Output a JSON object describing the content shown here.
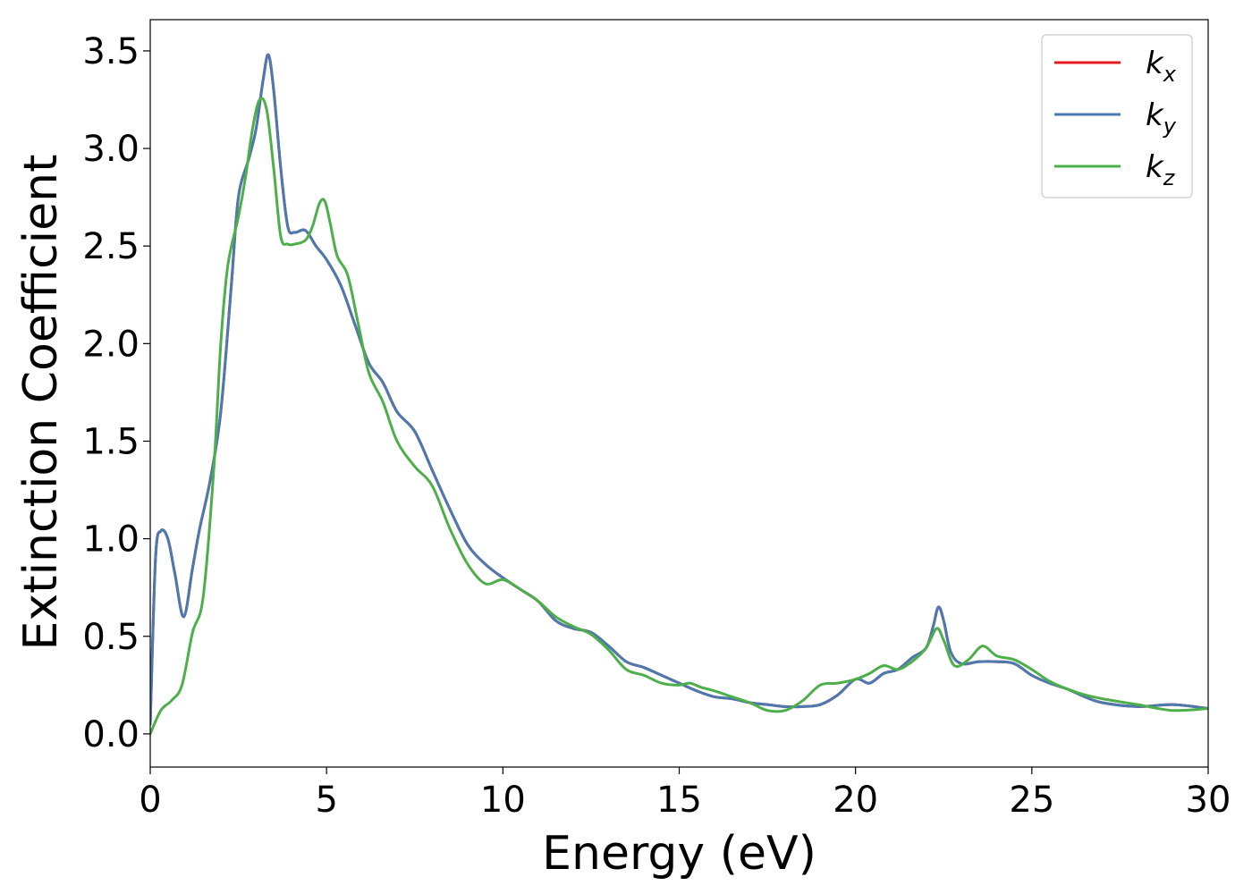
{
  "chart_data": {
    "type": "line",
    "xlabel": "Energy (eV)",
    "ylabel": "Extinction Coefficient",
    "xlim": [
      0,
      30
    ],
    "ylim": [
      -0.17,
      3.66
    ],
    "xticks": [
      0,
      5,
      10,
      15,
      20,
      25,
      30
    ],
    "xtick_labels": [
      "0",
      "5",
      "10",
      "15",
      "20",
      "25",
      "30"
    ],
    "yticks": [
      0.0,
      0.5,
      1.0,
      1.5,
      2.0,
      2.5,
      3.0,
      3.5
    ],
    "ytick_labels": [
      "0.0",
      "0.5",
      "1.0",
      "1.5",
      "2.0",
      "2.5",
      "3.0",
      "3.5"
    ],
    "grid": false,
    "legend_position": "top-right",
    "series": [
      {
        "name": "k",
        "subscript": "x",
        "color": "#e41a1c",
        "x": [
          0,
          0.15,
          0.3,
          0.5,
          0.7,
          0.95,
          1.2,
          1.4,
          1.7,
          2.0,
          2.3,
          2.5,
          2.8,
          3.0,
          3.2,
          3.35,
          3.5,
          3.7,
          3.9,
          4.1,
          4.4,
          4.7,
          5.0,
          5.4,
          5.8,
          6.2,
          6.6,
          7.0,
          7.5,
          8.0,
          8.5,
          9.0,
          9.5,
          10.0,
          10.5,
          11.0,
          11.5,
          12.0,
          12.5,
          13.0,
          13.5,
          14.0,
          14.5,
          15.0,
          15.5,
          16.0,
          16.5,
          17.0,
          17.5,
          18.0,
          18.5,
          19.0,
          19.5,
          20.0,
          20.4,
          20.8,
          21.2,
          21.6,
          22.0,
          22.2,
          22.35,
          22.5,
          22.7,
          23.0,
          23.5,
          24.0,
          24.5,
          25.0,
          25.5,
          26.0,
          26.5,
          27.0,
          28.0,
          29.0,
          30.0
        ],
        "values": [
          0.05,
          0.9,
          1.04,
          1.0,
          0.82,
          0.6,
          0.85,
          1.05,
          1.3,
          1.65,
          2.3,
          2.75,
          2.95,
          3.1,
          3.35,
          3.48,
          3.3,
          2.9,
          2.6,
          2.57,
          2.58,
          2.5,
          2.43,
          2.3,
          2.1,
          1.9,
          1.8,
          1.65,
          1.55,
          1.35,
          1.15,
          0.97,
          0.87,
          0.8,
          0.74,
          0.68,
          0.58,
          0.54,
          0.52,
          0.45,
          0.37,
          0.34,
          0.3,
          0.26,
          0.22,
          0.19,
          0.18,
          0.16,
          0.15,
          0.14,
          0.14,
          0.15,
          0.2,
          0.28,
          0.26,
          0.31,
          0.33,
          0.39,
          0.44,
          0.55,
          0.65,
          0.58,
          0.42,
          0.36,
          0.37,
          0.37,
          0.36,
          0.3,
          0.26,
          0.23,
          0.19,
          0.16,
          0.14,
          0.15,
          0.13
        ]
      },
      {
        "name": "k",
        "subscript": "y",
        "color": "#4a7ab0",
        "x": [
          0,
          0.15,
          0.3,
          0.5,
          0.7,
          0.95,
          1.2,
          1.4,
          1.7,
          2.0,
          2.3,
          2.5,
          2.8,
          3.0,
          3.2,
          3.35,
          3.5,
          3.7,
          3.9,
          4.1,
          4.4,
          4.7,
          5.0,
          5.4,
          5.8,
          6.2,
          6.6,
          7.0,
          7.5,
          8.0,
          8.5,
          9.0,
          9.5,
          10.0,
          10.5,
          11.0,
          11.5,
          12.0,
          12.5,
          13.0,
          13.5,
          14.0,
          14.5,
          15.0,
          15.5,
          16.0,
          16.5,
          17.0,
          17.5,
          18.0,
          18.5,
          19.0,
          19.5,
          20.0,
          20.4,
          20.8,
          21.2,
          21.6,
          22.0,
          22.2,
          22.35,
          22.5,
          22.7,
          23.0,
          23.5,
          24.0,
          24.5,
          25.0,
          25.5,
          26.0,
          26.5,
          27.0,
          28.0,
          29.0,
          30.0
        ],
        "values": [
          0.05,
          0.9,
          1.04,
          1.0,
          0.82,
          0.6,
          0.85,
          1.05,
          1.3,
          1.65,
          2.3,
          2.75,
          2.95,
          3.1,
          3.35,
          3.48,
          3.3,
          2.9,
          2.6,
          2.57,
          2.58,
          2.5,
          2.43,
          2.3,
          2.1,
          1.9,
          1.8,
          1.65,
          1.55,
          1.35,
          1.15,
          0.97,
          0.87,
          0.8,
          0.74,
          0.68,
          0.58,
          0.54,
          0.52,
          0.45,
          0.37,
          0.34,
          0.3,
          0.26,
          0.22,
          0.19,
          0.18,
          0.16,
          0.15,
          0.14,
          0.14,
          0.15,
          0.2,
          0.28,
          0.26,
          0.31,
          0.33,
          0.39,
          0.44,
          0.55,
          0.65,
          0.58,
          0.42,
          0.36,
          0.37,
          0.37,
          0.36,
          0.3,
          0.26,
          0.23,
          0.19,
          0.16,
          0.14,
          0.15,
          0.13
        ]
      },
      {
        "name": "k",
        "subscript": "z",
        "color": "#4daf4a",
        "x": [
          0,
          0.3,
          0.6,
          0.9,
          1.2,
          1.5,
          1.8,
          2.0,
          2.2,
          2.5,
          2.7,
          2.9,
          3.1,
          3.3,
          3.5,
          3.7,
          3.9,
          4.1,
          4.4,
          4.6,
          4.8,
          4.95,
          5.1,
          5.3,
          5.6,
          5.9,
          6.2,
          6.6,
          7.0,
          7.5,
          8.0,
          8.5,
          9.0,
          9.5,
          10.0,
          10.5,
          11.0,
          11.5,
          12.0,
          12.5,
          13.0,
          13.5,
          14.0,
          14.5,
          15.0,
          15.3,
          15.6,
          16.0,
          16.5,
          17.0,
          17.5,
          18.0,
          18.5,
          19.0,
          19.5,
          20.0,
          20.4,
          20.8,
          21.2,
          21.6,
          22.0,
          22.3,
          22.5,
          22.8,
          23.2,
          23.6,
          24.0,
          24.5,
          25.0,
          25.5,
          26.0,
          26.5,
          27.0,
          28.0,
          29.0,
          30.0
        ],
        "values": [
          0.0,
          0.12,
          0.17,
          0.25,
          0.52,
          0.7,
          1.35,
          2.0,
          2.4,
          2.65,
          2.85,
          3.1,
          3.25,
          3.2,
          2.9,
          2.55,
          2.51,
          2.51,
          2.53,
          2.6,
          2.72,
          2.73,
          2.62,
          2.45,
          2.35,
          2.1,
          1.85,
          1.7,
          1.5,
          1.37,
          1.27,
          1.05,
          0.87,
          0.77,
          0.79,
          0.74,
          0.68,
          0.6,
          0.55,
          0.51,
          0.43,
          0.33,
          0.3,
          0.26,
          0.25,
          0.26,
          0.24,
          0.22,
          0.19,
          0.16,
          0.12,
          0.12,
          0.17,
          0.25,
          0.26,
          0.28,
          0.31,
          0.35,
          0.33,
          0.37,
          0.44,
          0.54,
          0.48,
          0.35,
          0.38,
          0.45,
          0.4,
          0.38,
          0.33,
          0.27,
          0.23,
          0.2,
          0.18,
          0.15,
          0.12,
          0.13
        ]
      }
    ]
  }
}
